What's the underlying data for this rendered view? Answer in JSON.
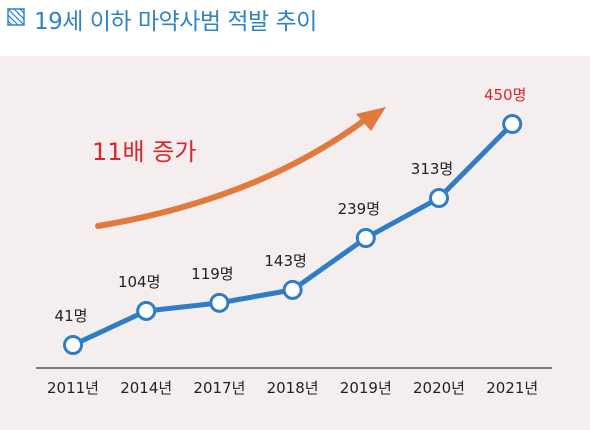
{
  "header": {
    "title": "19세 이하 마약사범 적발 추이",
    "icon": "hatched-square-icon"
  },
  "colors": {
    "title": "#2f84c8",
    "line": "#2f7dc4",
    "marker_fill": "#ffffff",
    "arrow": "#e2793d",
    "annotation": "#d8262b",
    "highlight_label": "#d8262b",
    "label": "#222222",
    "panel_bg": "#f4efee"
  },
  "chart_data": {
    "type": "line",
    "title": "19세 이하 마약사범 적발 추이",
    "categories": [
      "2011년",
      "2014년",
      "2017년",
      "2018년",
      "2019년",
      "2020년",
      "2021년"
    ],
    "series": [
      {
        "values": [
          41,
          104,
          119,
          143,
          239,
          313,
          450
        ]
      }
    ],
    "data_labels": [
      "41명",
      "104명",
      "119명",
      "143명",
      "239명",
      "313명",
      "450명"
    ],
    "highlight_index": 6,
    "annotation": "11배 증가",
    "xlabel": "",
    "ylabel": "",
    "grid": false,
    "legend": "none"
  }
}
